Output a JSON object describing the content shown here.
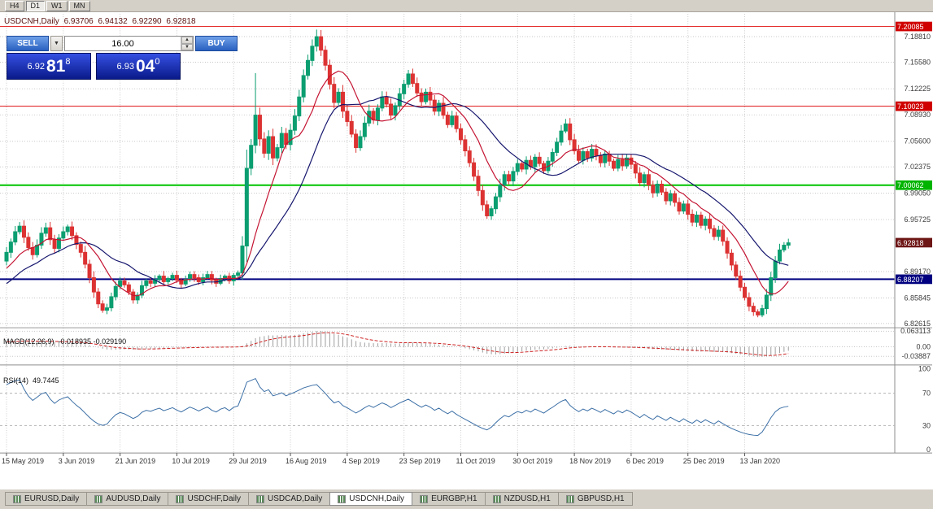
{
  "toolbar": {
    "buttons": [
      "H4",
      "D1",
      "W1",
      "MN"
    ],
    "active": "D1"
  },
  "header": {
    "symbol_period": "USDCNH,Daily",
    "open": "6.93706",
    "high": "6.94132",
    "low": "6.92290",
    "close": "6.92818"
  },
  "trade_panel": {
    "sell_label": "SELL",
    "buy_label": "BUY",
    "volume": "16.00",
    "bid_head": "6.92",
    "bid_big": "81",
    "bid_sup": "8",
    "ask_head": "6.93",
    "ask_big": "04",
    "ask_sup": "0"
  },
  "icons": {
    "chevron_down": "▼",
    "spinner_up": "▲",
    "spinner_down": "▼"
  },
  "colors": {
    "background": "#ffffff",
    "grid": "#c8c8c8",
    "axis_text": "#3c3c3c",
    "candle_up": "#0b9e70",
    "candle_down": "#dc3232",
    "ma_fast": "#c41432",
    "ma_slow": "#16166e",
    "macd_histogram": "#9e9e9e",
    "macd_signal": "#cc2020",
    "rsi_line": "#3a6ea5",
    "badge_red": "#d00000",
    "badge_green": "#00b400",
    "badge_navy": "#000080",
    "badge_current": "#6e1616"
  },
  "indicators": {
    "macd": {
      "name": "MACD(12,26,9)",
      "values": "-0.018935 -0.029190",
      "fast": 12,
      "slow": 26,
      "signal": 9,
      "axis_labels": [
        "0.063113",
        "0.00",
        "-0.03887"
      ]
    },
    "rsi": {
      "name": "RSI(14)",
      "value": "49.7445",
      "period": 14,
      "levels": [
        70,
        30
      ],
      "axis_labels": [
        "100",
        "70",
        "30",
        "0"
      ]
    }
  },
  "tabs": {
    "items": [
      "EURUSD,Daily",
      "AUDUSD,Daily",
      "USDCHF,Daily",
      "USDCAD,Daily",
      "USDCNH,Daily",
      "EURGBP,H1",
      "NZDUSD,H1",
      "GBPUSD,H1"
    ],
    "active": "USDCNH,Daily"
  },
  "chart_data": {
    "type": "candlestick",
    "symbol": "USDCNH",
    "timeframe": "Daily",
    "price_range": {
      "top": 7.20985,
      "bottom": 6.82185
    },
    "warmup": {
      "bars": 34,
      "start": 6.792,
      "end": 6.908
    },
    "closes": [
      6.916,
      6.929,
      6.942,
      6.949,
      6.935,
      6.922,
      6.913,
      6.925,
      6.94,
      6.947,
      6.932,
      6.921,
      6.934,
      6.942,
      6.948,
      6.937,
      6.926,
      6.916,
      6.901,
      6.884,
      6.866,
      6.851,
      6.843,
      6.846,
      6.86,
      6.873,
      6.88,
      6.875,
      6.866,
      6.856,
      6.862,
      6.874,
      6.88,
      6.877,
      6.882,
      6.886,
      6.879,
      6.883,
      6.887,
      6.881,
      6.876,
      6.882,
      6.888,
      6.884,
      6.879,
      6.884,
      6.888,
      6.881,
      6.877,
      6.883,
      6.886,
      6.88,
      6.887,
      6.89,
      6.924,
      7.022,
      7.051,
      7.089,
      7.059,
      7.041,
      7.062,
      7.035,
      7.048,
      7.066,
      7.052,
      7.07,
      7.088,
      7.112,
      7.139,
      7.158,
      7.176,
      7.188,
      7.171,
      7.152,
      7.128,
      7.105,
      7.118,
      7.094,
      7.081,
      7.065,
      7.048,
      7.062,
      7.079,
      7.094,
      7.083,
      7.098,
      7.112,
      7.103,
      7.089,
      7.101,
      7.116,
      7.128,
      7.141,
      7.129,
      7.117,
      7.106,
      7.118,
      7.108,
      7.094,
      7.104,
      7.089,
      7.077,
      7.088,
      7.072,
      7.058,
      7.044,
      7.029,
      7.012,
      6.994,
      6.976,
      6.962,
      6.971,
      6.986,
      7.001,
      7.014,
      7.006,
      7.018,
      7.028,
      7.021,
      7.032,
      7.024,
      7.036,
      7.028,
      7.019,
      7.031,
      7.042,
      7.055,
      7.069,
      7.078,
      7.058,
      7.044,
      7.032,
      7.043,
      7.035,
      7.046,
      7.038,
      7.029,
      7.04,
      7.031,
      7.022,
      7.033,
      7.025,
      7.035,
      7.027,
      7.016,
      7.004,
      7.014,
      7.001,
      6.991,
      7.002,
      6.992,
      6.981,
      6.99,
      6.979,
      6.968,
      6.977,
      6.964,
      6.954,
      6.963,
      6.95,
      6.958,
      6.946,
      6.936,
      6.944,
      6.93,
      6.915,
      6.9,
      6.886,
      6.872,
      6.859,
      6.848,
      6.841,
      6.837,
      6.845,
      6.862,
      6.884,
      6.905,
      6.919,
      6.925,
      6.928
    ],
    "extra_high_wicks": [
      {
        "bar": 57,
        "high": 7.142
      },
      {
        "bar": 71,
        "high": 7.197
      }
    ],
    "moving_averages": [
      {
        "type": "sma",
        "period": 10
      },
      {
        "type": "sma",
        "period": 21
      }
    ],
    "y_axis_labels": [
      "7.18810",
      "7.15580",
      "7.12225",
      "7.08930",
      "7.05600",
      "7.02375",
      "6.99050",
      "6.95725",
      "6.89170",
      "6.85845",
      "6.82615"
    ],
    "h_lines": [
      {
        "value": 7.20085,
        "label": "7.20085",
        "color": "#e01010",
        "badge": "#d00000",
        "width": 1
      },
      {
        "value": 7.10023,
        "label": "7.10023",
        "color": "#e01010",
        "badge": "#d00000",
        "width": 1
      },
      {
        "value": 7.00062,
        "label": "7.00062",
        "color": "#00c400",
        "badge": "#00b400",
        "width": 2
      },
      {
        "value": 6.88207,
        "label": "6.88207",
        "color": "#000080",
        "badge": "#000080",
        "width": 2
      }
    ],
    "current_price": {
      "value": 6.92818,
      "label": "6.92818",
      "badge": "#6e1616"
    },
    "x_axis": {
      "labels": [
        "15 May 2019",
        "3 Jun 2019",
        "21 Jun 2019",
        "10 Jul 2019",
        "29 Jul 2019",
        "16 Aug 2019",
        "4 Sep 2019",
        "23 Sep 2019",
        "11 Oct 2019",
        "30 Oct 2019",
        "18 Nov 2019",
        "6 Dec 2019",
        "25 Dec 2019",
        "13 Jan 2020"
      ],
      "label_bars": [
        0,
        13,
        26,
        39,
        52,
        65,
        78,
        91,
        104,
        117,
        130,
        143,
        156,
        169
      ]
    }
  }
}
